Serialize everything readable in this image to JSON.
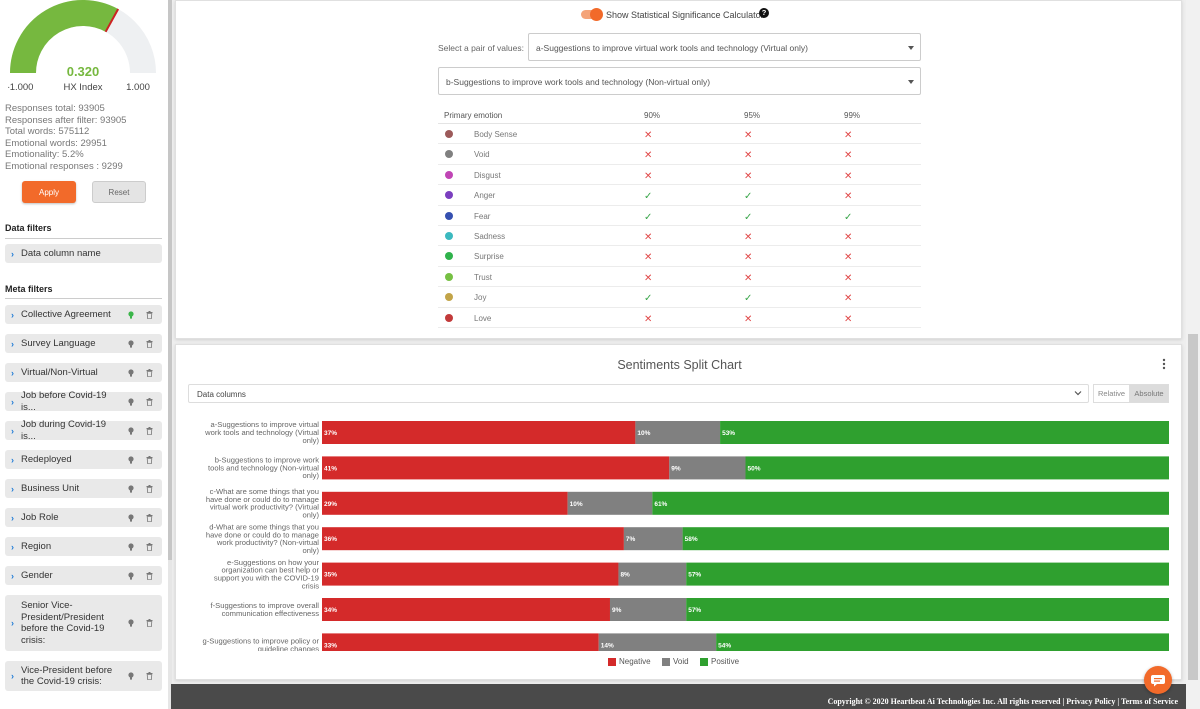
{
  "gauge": {
    "value": "0.320",
    "label": "HX Index",
    "min": "-1.000",
    "max": "1.000",
    "fraction": 0.66,
    "fill_color": "#76b83f",
    "track_color": "#eef0f2",
    "marker_color": "#cc2222"
  },
  "stats": [
    "Responses total: 93905",
    "Responses after filter: 93905",
    "Total words: 575112",
    "Emotional words: 29951",
    "Emotionality: 5.2%",
    "Emotional responses : 9299"
  ],
  "buttons": {
    "apply": "Apply",
    "reset": "Reset"
  },
  "data_filters": {
    "title": "Data filters",
    "items": [
      "Data column name"
    ]
  },
  "meta_filters": {
    "title": "Meta filters",
    "items": [
      "Collective Agreement",
      "Survey Language",
      "Virtual/Non-Virtual",
      "Job before Covid-19 is...",
      "Job during Covid-19 is...",
      "Redeployed",
      "Business Unit",
      "Job Role",
      "Region",
      "Gender",
      "Senior Vice-President/President before the Covid-19 crisis:",
      "Vice-President before the Covid-19 crisis:"
    ]
  },
  "significance": {
    "toggle_label": "Show Statistical Significance Calculator",
    "pair_label": "Select a pair of values:",
    "value_a": "a-Suggestions to improve virtual work tools and technology (Virtual only)",
    "value_b": "b-Suggestions to improve work tools and technology (Non-virtual only)",
    "headers": [
      "Primary emotion",
      "90%",
      "95%",
      "99%"
    ],
    "rows": [
      {
        "emotion": "Body Sense",
        "color": "#9c5a5a",
        "marks": [
          "x",
          "x",
          "x"
        ]
      },
      {
        "emotion": "Void",
        "color": "#808080",
        "marks": [
          "x",
          "x",
          "x"
        ]
      },
      {
        "emotion": "Disgust",
        "color": "#c045b5",
        "marks": [
          "x",
          "x",
          "x"
        ]
      },
      {
        "emotion": "Anger",
        "color": "#7b3fbf",
        "marks": [
          "ok",
          "ok",
          "x"
        ]
      },
      {
        "emotion": "Fear",
        "color": "#3550b0",
        "marks": [
          "ok",
          "ok",
          "ok"
        ]
      },
      {
        "emotion": "Sadness",
        "color": "#3bb9bf",
        "marks": [
          "x",
          "x",
          "x"
        ]
      },
      {
        "emotion": "Surprise",
        "color": "#2fb24b",
        "marks": [
          "x",
          "x",
          "x"
        ]
      },
      {
        "emotion": "Trust",
        "color": "#76c043",
        "marks": [
          "x",
          "x",
          "x"
        ]
      },
      {
        "emotion": "Joy",
        "color": "#c2a448",
        "marks": [
          "ok",
          "ok",
          "x"
        ]
      },
      {
        "emotion": "Love",
        "color": "#c23a3a",
        "marks": [
          "x",
          "x",
          "x"
        ]
      }
    ]
  },
  "sentiments_chart": {
    "title": "Sentiments Split Chart",
    "selector_value": "Data columns",
    "mode_options": [
      "Relative",
      "Absolute"
    ],
    "active_mode": "Absolute"
  },
  "chart_data": {
    "type": "bar",
    "orientation": "horizontal",
    "stacked": true,
    "categories": [
      "a-Suggestions to improve virtual work tools and technology (Virtual only)",
      "b-Suggestions to improve work tools and technology (Non-virtual only)",
      "c-What are some things that you have done or could do to manage virtual work productivity? (Virtual only)",
      "d-What are some things that you have done or could do to manage work productivity? (Non-virtual only)",
      "e-Suggestions on how your organization can best help or support you with the COVID-19 crisis",
      "f-Suggestions to improve overall communication effectiveness",
      "g-Suggestions to improve policy or guideline changes"
    ],
    "series": [
      {
        "name": "Negative",
        "color": "#d42a2a",
        "values": [
          37,
          41,
          29,
          36,
          35,
          34,
          33
        ]
      },
      {
        "name": "Void",
        "color": "#808080",
        "values": [
          10,
          9,
          10,
          7,
          8,
          9,
          14
        ]
      },
      {
        "name": "Positive",
        "color": "#2fa02f",
        "values": [
          53,
          50,
          61,
          58,
          57,
          57,
          54
        ]
      }
    ],
    "value_suffix": "%",
    "legend_position": "bottom"
  },
  "footer": {
    "text": "Copyright © 2020 Heartbeat Ai Technologies Inc. All rights reserved | Privacy Policy | Terms of Service"
  }
}
